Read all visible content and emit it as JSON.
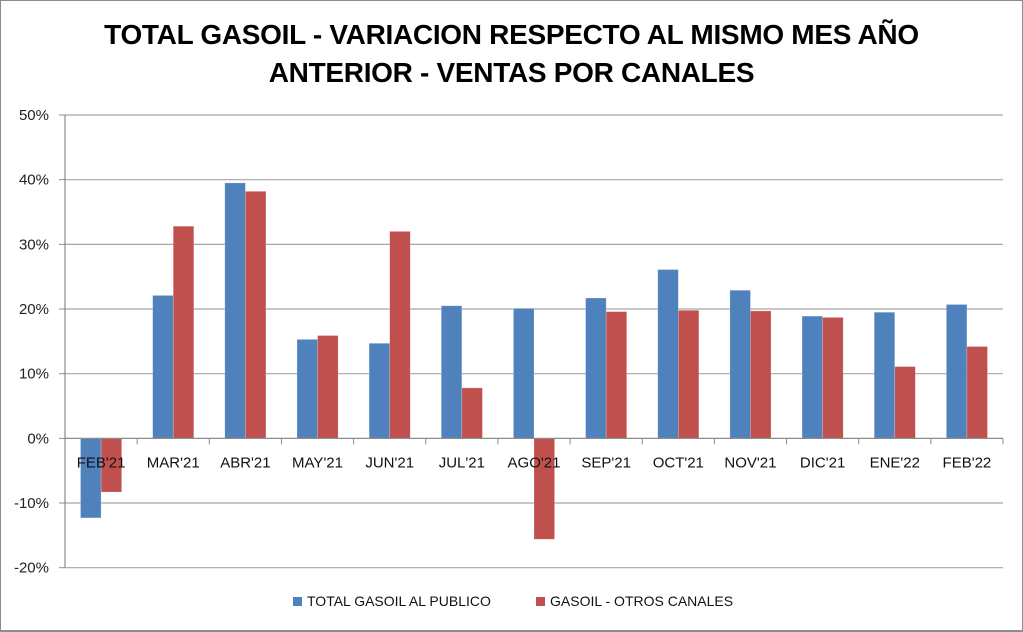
{
  "chart_data": {
    "type": "bar",
    "title_lines": [
      "TOTAL GASOIL - VARIACION RESPECTO AL MISMO MES AÑO",
      "ANTERIOR - VENTAS POR CANALES"
    ],
    "xlabel": "",
    "ylabel": "",
    "ylim": [
      -0.2,
      0.5
    ],
    "yticks": [
      -0.2,
      -0.1,
      0.0,
      0.1,
      0.2,
      0.3,
      0.4,
      0.5
    ],
    "ytick_labels": [
      "-20%",
      "-10%",
      "0%",
      "10%",
      "20%",
      "30%",
      "40%",
      "50%"
    ],
    "grid": true,
    "legend_position": "bottom",
    "categories": [
      "FEB'21",
      "MAR'21",
      "ABR'21",
      "MAY'21",
      "JUN'21",
      "JUL'21",
      "AGO'21",
      "SEP'21",
      "OCT'21",
      "NOV'21",
      "DIC'21",
      "ENE'22",
      "FEB'22"
    ],
    "series": [
      {
        "name": "TOTAL GASOIL AL PUBLICO",
        "color": "#4f81bd",
        "values": [
          -0.123,
          0.221,
          0.395,
          0.153,
          0.147,
          0.205,
          0.201,
          0.217,
          0.261,
          0.229,
          0.189,
          0.195,
          0.207
        ]
      },
      {
        "name": "GASOIL - OTROS CANALES",
        "color": "#c0504d",
        "values": [
          -0.083,
          0.328,
          0.382,
          0.159,
          0.32,
          0.078,
          -0.156,
          0.196,
          0.198,
          0.197,
          0.187,
          0.111,
          0.142
        ]
      }
    ]
  }
}
